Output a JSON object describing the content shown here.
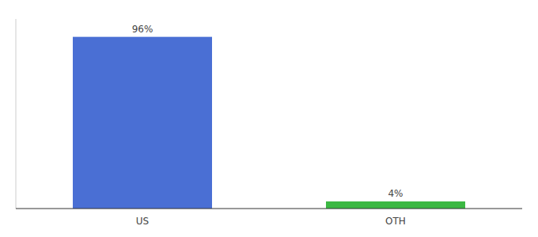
{
  "chart_data": {
    "type": "bar",
    "categories": [
      "US",
      "OTH"
    ],
    "values": [
      96,
      4
    ],
    "value_labels": [
      "96%",
      "4%"
    ],
    "colors": [
      "#4a6fd4",
      "#3cb843"
    ],
    "ylim": [
      0,
      106
    ],
    "grid": false,
    "data_labels": true,
    "tick_labels": "x"
  }
}
